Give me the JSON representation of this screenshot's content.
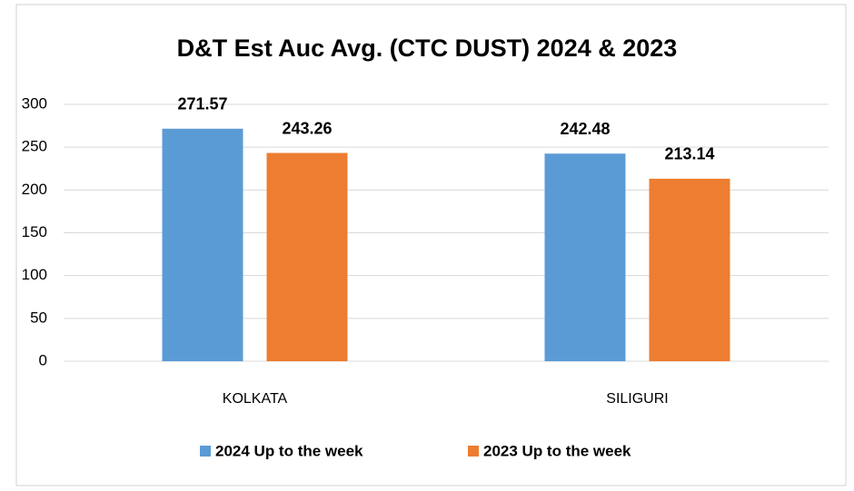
{
  "chart_data": {
    "type": "bar",
    "title": "D&T Est Auc Avg. (CTC DUST) 2024 & 2023",
    "categories": [
      "KOLKATA",
      "SILIGURI"
    ],
    "series": [
      {
        "name": "2024 Up to the week",
        "color": "#5b9bd5",
        "values": [
          271.57,
          242.48
        ]
      },
      {
        "name": "2023 Up to the week",
        "color": "#ed7d31",
        "values": [
          243.26,
          213.14
        ]
      }
    ],
    "ylim": [
      0,
      300
    ],
    "yticks": [
      0,
      50,
      100,
      150,
      200,
      250,
      300
    ],
    "grid": true,
    "legend": "bottom"
  }
}
